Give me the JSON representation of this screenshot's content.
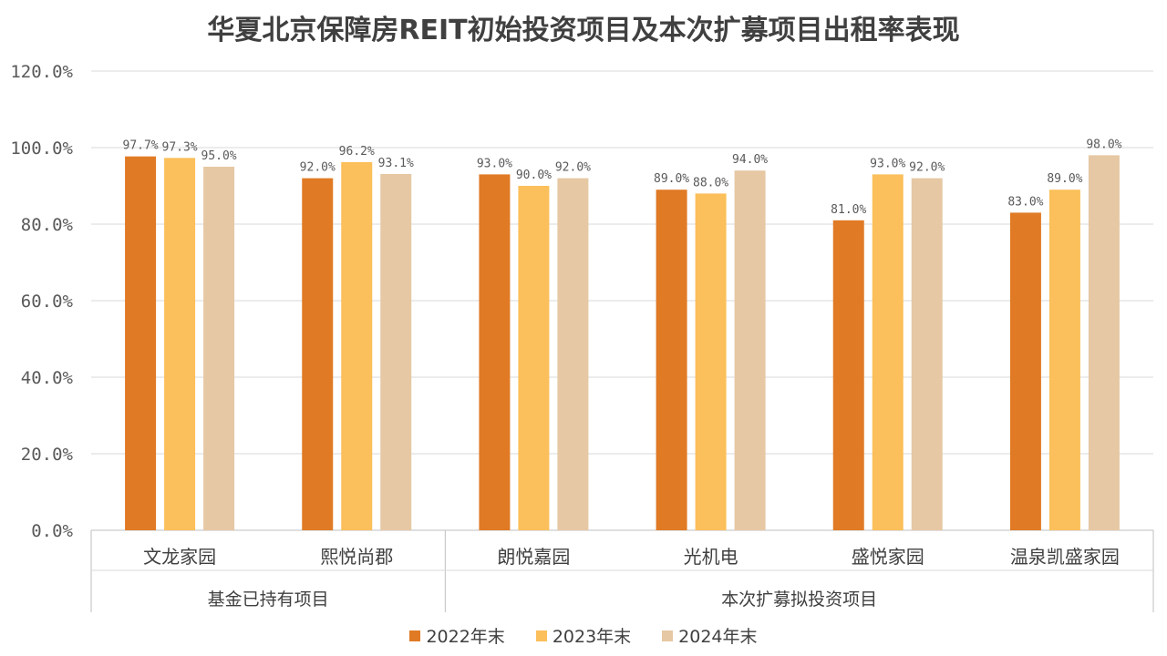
{
  "chart_data": {
    "type": "bar",
    "title": "华夏北京保障房REIT初始投资项目及本次扩募项目出租率表现",
    "categories": [
      "文龙家园",
      "熙悦尚郡",
      "朗悦嘉园",
      "光机电",
      "盛悦家园",
      "温泉凯盛家园"
    ],
    "groups": [
      {
        "label": "基金已持有项目",
        "categories": [
          "文龙家园",
          "熙悦尚郡"
        ]
      },
      {
        "label": "本次扩募拟投资项目",
        "categories": [
          "朗悦嘉园",
          "光机电",
          "盛悦家园",
          "温泉凯盛家园"
        ]
      }
    ],
    "series": [
      {
        "name": "2022年末",
        "color": "#E07A25",
        "values": [
          97.7,
          92.0,
          93.0,
          89.0,
          81.0,
          83.0
        ],
        "labels": [
          "97.7%",
          "92.0%",
          "93.0%",
          "89.0%",
          "81.0%",
          "83.0%"
        ]
      },
      {
        "name": "2023年末",
        "color": "#FBBF5B",
        "values": [
          97.3,
          96.2,
          90.0,
          88.0,
          93.0,
          89.0
        ],
        "labels": [
          "97.3%",
          "96.2%",
          "90.0%",
          "88.0%",
          "93.0%",
          "89.0%"
        ]
      },
      {
        "name": "2024年末",
        "color": "#E6C8A4",
        "values": [
          95.0,
          93.1,
          92.0,
          94.0,
          92.0,
          98.0
        ],
        "labels": [
          "95.0%",
          "93.1%",
          "92.0%",
          "94.0%",
          "92.0%",
          "98.0%"
        ]
      }
    ],
    "ylim": [
      0,
      120
    ],
    "yticks": [
      "0.0%",
      "20.0%",
      "40.0%",
      "60.0%",
      "80.0%",
      "100.0%",
      "120.0%"
    ],
    "xlabel": "",
    "ylabel": "",
    "grid": true,
    "legend_position": "bottom"
  }
}
